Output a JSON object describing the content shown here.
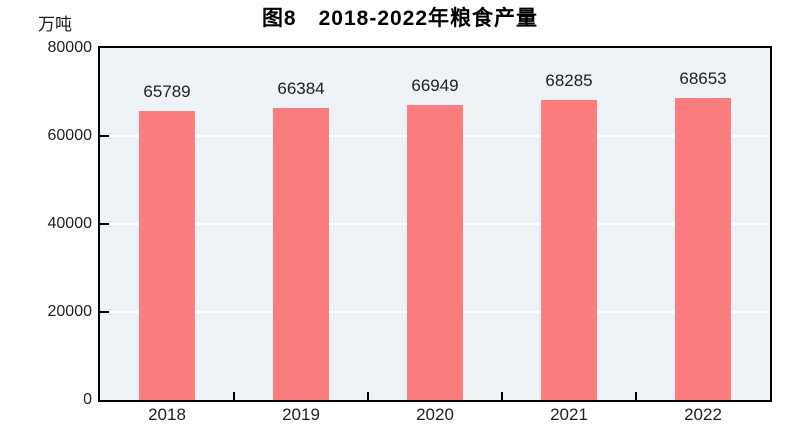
{
  "colors": {
    "bar": "#fb7d7d",
    "plot_background": "#edf3f6",
    "gridline": "#ffffff",
    "axis": "#000000",
    "text": "#1f1f1f"
  },
  "chart_data": {
    "type": "bar",
    "title": "图8　2018-2022年粮食产量",
    "unit_label": "万吨",
    "xlabel": "",
    "ylabel": "万吨",
    "categories": [
      "2018",
      "2019",
      "2020",
      "2021",
      "2022"
    ],
    "values": [
      65789,
      66384,
      66949,
      68285,
      68653
    ],
    "data_labels": [
      "65789",
      "66384",
      "66949",
      "68285",
      "68653"
    ],
    "ylim": [
      0,
      80000
    ],
    "yticks": [
      0,
      20000,
      40000,
      60000,
      80000
    ],
    "ytick_labels": [
      "0",
      "20000",
      "40000",
      "60000",
      "80000"
    ],
    "grid": true,
    "legend_position": "none"
  }
}
